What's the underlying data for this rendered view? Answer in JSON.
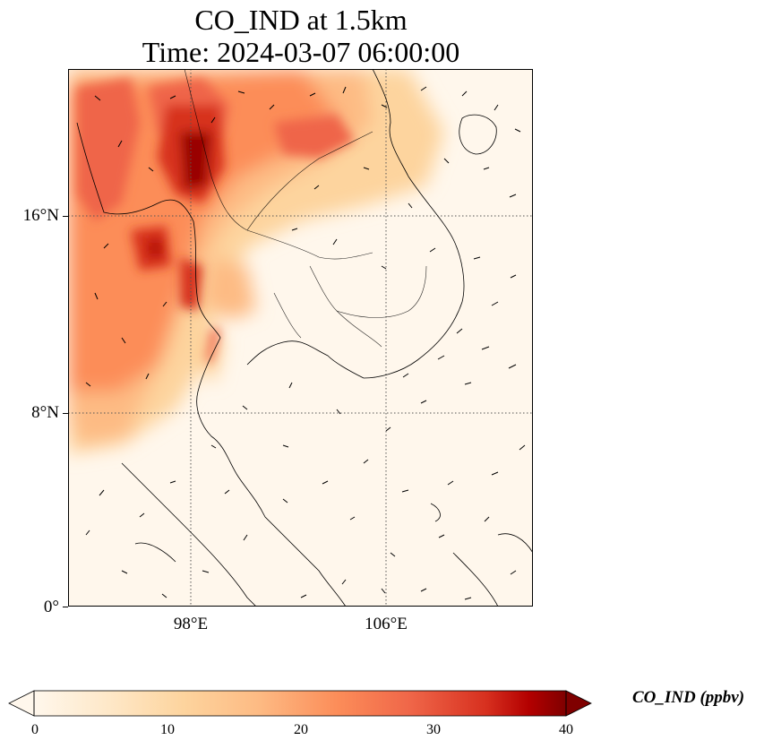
{
  "title": {
    "line1": "CO_IND at 1.5km",
    "line2": "Time: 2024-03-07 06:00:00"
  },
  "axes": {
    "lat_ticks": [
      "16°N",
      "8°N",
      "0°"
    ],
    "lon_ticks": [
      "98°E",
      "106°E"
    ]
  },
  "colorbar": {
    "label": "CO_IND (ppbv)",
    "ticks": [
      "0",
      "10",
      "20",
      "30",
      "40"
    ],
    "min": 0,
    "max": 40,
    "extend": "both",
    "colormap": "OrRd"
  },
  "map": {
    "region": "Indochina / Southeast Asia",
    "lon_range": [
      93,
      112
    ],
    "lat_range": [
      0,
      22
    ],
    "gridlines": "dotted",
    "colors": {
      "low": "#fff7ec",
      "mid": "#fc8d59",
      "high": "#7f0000"
    }
  }
}
